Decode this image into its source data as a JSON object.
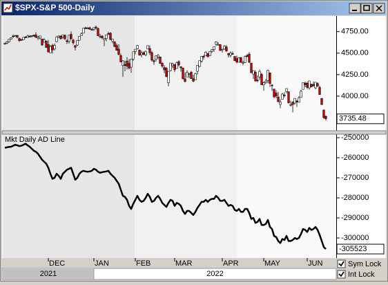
{
  "window": {
    "title": "$SPX-S&P 500-Daily"
  },
  "controls": {
    "sym_lock": {
      "label": "Sym Lock",
      "checked": true
    },
    "int_lock": {
      "label": "Int Lock",
      "checked": true
    }
  },
  "chart_data": [
    {
      "type": "candlestick",
      "color_up": "#ffffff",
      "color_down": "#cc0000",
      "xlim": [
        -1,
        160
      ],
      "ylim": [
        3605,
        4925
      ],
      "yticks": [
        {
          "value": 4750,
          "label": "4750.00"
        },
        {
          "value": 4500,
          "label": "4500.00"
        },
        {
          "value": 4250,
          "label": "4250.00"
        },
        {
          "value": 4000,
          "label": "4000.00"
        }
      ],
      "ohlc": [
        [
          4610,
          4620,
          4595,
          4614
        ],
        [
          4614,
          4636,
          4602,
          4631
        ],
        [
          4630,
          4664,
          4621,
          4660
        ],
        [
          4662,
          4683,
          4655,
          4680
        ],
        [
          4699,
          4718,
          4681,
          4697
        ],
        [
          4701,
          4714,
          4694,
          4702
        ],
        [
          4707,
          4708,
          4670,
          4685
        ],
        [
          4670,
          4684,
          4630,
          4646
        ],
        [
          4659,
          4664,
          4646,
          4649
        ],
        [
          4655,
          4688,
          4650,
          4683
        ],
        [
          4689,
          4697,
          4672,
          4682
        ],
        [
          4684,
          4714,
          4680,
          4700
        ],
        [
          4701,
          4703,
          4684,
          4688
        ],
        [
          4700,
          4708,
          4681,
          4704
        ],
        [
          4708,
          4717,
          4690,
          4698
        ],
        [
          4712,
          4743,
          4680,
          4682
        ],
        [
          4675,
          4702,
          4652,
          4690
        ],
        [
          4675,
          4702,
          4659,
          4701
        ],
        [
          4664,
          4664,
          4585,
          4595
        ],
        [
          4628,
          4672,
          4625,
          4655
        ],
        [
          4640,
          4646,
          4560,
          4567
        ],
        [
          4602,
          4652,
          4510,
          4513
        ],
        [
          4504,
          4595,
          4504,
          4577
        ],
        [
          4589,
          4608,
          4495,
          4538
        ],
        [
          4548,
          4612,
          4532,
          4591
        ],
        [
          4631,
          4694,
          4631,
          4686
        ],
        [
          4690,
          4705,
          4674,
          4701
        ],
        [
          4697,
          4708,
          4659,
          4667
        ],
        [
          4687,
          4713,
          4666,
          4712
        ],
        [
          4710,
          4711,
          4650,
          4668
        ],
        [
          4643,
          4660,
          4606,
          4634
        ],
        [
          4636,
          4712,
          4611,
          4709
        ],
        [
          4719,
          4752,
          4657,
          4668
        ],
        [
          4652,
          4666,
          4600,
          4620
        ],
        [
          4587,
          4594,
          4531,
          4568
        ],
        [
          4594,
          4651,
          4583,
          4649
        ],
        [
          4650,
          4698,
          4645,
          4697
        ],
        [
          4703,
          4740,
          4703,
          4725
        ],
        [
          4733,
          4791,
          4733,
          4791
        ],
        [
          4795,
          4807,
          4780,
          4786
        ],
        [
          4788,
          4805,
          4778,
          4793
        ],
        [
          4795,
          4808,
          4775,
          4778
        ],
        [
          4775,
          4787,
          4765,
          4766
        ],
        [
          4778,
          4797,
          4758,
          4797
        ],
        [
          4804,
          4819,
          4774,
          4794
        ],
        [
          4787,
          4798,
          4699,
          4701
        ],
        [
          4693,
          4726,
          4672,
          4696
        ],
        [
          4698,
          4708,
          4663,
          4677
        ],
        [
          4655,
          4673,
          4582,
          4670
        ],
        [
          4670,
          4715,
          4637,
          4713
        ],
        [
          4728,
          4749,
          4712,
          4726
        ],
        [
          4733,
          4744,
          4650,
          4659
        ],
        [
          4637,
          4665,
          4614,
          4663
        ],
        [
          4632,
          4632,
          4569,
          4577
        ],
        [
          4588,
          4612,
          4530,
          4533
        ],
        [
          4547,
          4603,
          4477,
          4483
        ],
        [
          4472,
          4494,
          4395,
          4398
        ],
        [
          4357,
          4418,
          4223,
          4410
        ],
        [
          4366,
          4412,
          4288,
          4357
        ],
        [
          4408,
          4454,
          4309,
          4350
        ],
        [
          4380,
          4429,
          4309,
          4326
        ],
        [
          4337,
          4432,
          4271,
          4432
        ],
        [
          4431,
          4517,
          4411,
          4516
        ],
        [
          4519,
          4546,
          4484,
          4546
        ],
        [
          4552,
          4595,
          4544,
          4589
        ],
        [
          4535,
          4542,
          4470,
          4477
        ],
        [
          4482,
          4530,
          4452,
          4500
        ],
        [
          4505,
          4522,
          4476,
          4484
        ],
        [
          4480,
          4531,
          4465,
          4521
        ],
        [
          4548,
          4591,
          4548,
          4587
        ],
        [
          4553,
          4589,
          4476,
          4504
        ],
        [
          4506,
          4527,
          4402,
          4419
        ],
        [
          4412,
          4427,
          4364,
          4401
        ],
        [
          4429,
          4472,
          4403,
          4472
        ],
        [
          4455,
          4490,
          4429,
          4475
        ],
        [
          4456,
          4457,
          4374,
          4381
        ],
        [
          4384,
          4394,
          4327,
          4349
        ],
        [
          4332,
          4363,
          4267,
          4305
        ],
        [
          4324,
          4340,
          4222,
          4226
        ],
        [
          4155,
          4294,
          4114,
          4288
        ],
        [
          4298,
          4385,
          4286,
          4385
        ],
        [
          4354,
          4389,
          4325,
          4374
        ],
        [
          4364,
          4375,
          4279,
          4306
        ],
        [
          4322,
          4401,
          4322,
          4387
        ],
        [
          4401,
          4417,
          4345,
          4363
        ],
        [
          4342,
          4342,
          4284,
          4329
        ],
        [
          4327,
          4327,
          4199,
          4201
        ],
        [
          4202,
          4276,
          4157,
          4171
        ],
        [
          4223,
          4300,
          4223,
          4278
        ],
        [
          4252,
          4268,
          4209,
          4260
        ],
        [
          4279,
          4292,
          4200,
          4204
        ],
        [
          4202,
          4248,
          4162,
          4173
        ],
        [
          4188,
          4272,
          4188,
          4262
        ],
        [
          4288,
          4358,
          4251,
          4358
        ],
        [
          4345,
          4412,
          4335,
          4412
        ],
        [
          4407,
          4465,
          4390,
          4463
        ],
        [
          4462,
          4481,
          4425,
          4461
        ],
        [
          4469,
          4522,
          4469,
          4512
        ],
        [
          4494,
          4500,
          4455,
          4457
        ],
        [
          4470,
          4520,
          4465,
          4520
        ],
        [
          4522,
          4546,
          4501,
          4543
        ],
        [
          4541,
          4575,
          4517,
          4575
        ],
        [
          4602,
          4637,
          4582,
          4632
        ],
        [
          4599,
          4627,
          4588,
          4602
        ],
        [
          4599,
          4603,
          4530,
          4530
        ],
        [
          4540,
          4548,
          4507,
          4546
        ],
        [
          4548,
          4593,
          4539,
          4583
        ],
        [
          4572,
          4593,
          4514,
          4525
        ],
        [
          4494,
          4503,
          4450,
          4481
        ],
        [
          4474,
          4521,
          4450,
          4500
        ],
        [
          4494,
          4520,
          4488,
          4488
        ],
        [
          4462,
          4464,
          4408,
          4413
        ],
        [
          4437,
          4471,
          4381,
          4397
        ],
        [
          4394,
          4453,
          4392,
          4447
        ],
        [
          4449,
          4453,
          4392,
          4392
        ],
        [
          4385,
          4411,
          4358,
          4391
        ],
        [
          4390,
          4471,
          4390,
          4462
        ],
        [
          4473,
          4489,
          4453,
          4460
        ],
        [
          4489,
          4513,
          4384,
          4394
        ],
        [
          4385,
          4386,
          4268,
          4272
        ],
        [
          4256,
          4300,
          4200,
          4296
        ],
        [
          4279,
          4299,
          4175,
          4175
        ],
        [
          4186,
          4240,
          4162,
          4184
        ],
        [
          4222,
          4308,
          4188,
          4288
        ],
        [
          4253,
          4270,
          4132,
          4132
        ],
        [
          4131,
          4169,
          4062,
          4155
        ],
        [
          4159,
          4200,
          4142,
          4175
        ],
        [
          4181,
          4307,
          4148,
          4300
        ],
        [
          4270,
          4270,
          4106,
          4147
        ],
        [
          4128,
          4141,
          4062,
          4123
        ],
        [
          4082,
          4082,
          3976,
          3991
        ],
        [
          4035,
          4068,
          3975,
          4001
        ],
        [
          3990,
          4050,
          3929,
          3935
        ],
        [
          3903,
          3964,
          3859,
          3930
        ],
        [
          3963,
          4039,
          3963,
          4024
        ],
        [
          4013,
          4046,
          3984,
          4008
        ],
        [
          4052,
          4089,
          4033,
          4088
        ],
        [
          4051,
          4051,
          3912,
          3923
        ],
        [
          3900,
          3946,
          3877,
          3901
        ],
        [
          3927,
          3943,
          3811,
          3901
        ],
        [
          3919,
          3975,
          3900,
          3974
        ],
        [
          3942,
          3955,
          3875,
          3941
        ],
        [
          3929,
          3999,
          3925,
          3979
        ],
        [
          3985,
          4075,
          3985,
          4058
        ],
        [
          4078,
          4158,
          4078,
          4158
        ],
        [
          4151,
          4168,
          4104,
          4132
        ],
        [
          4150,
          4167,
          4082,
          4101
        ],
        [
          4096,
          4177,
          4074,
          4177
        ],
        [
          4137,
          4143,
          4101,
          4109
        ],
        [
          4135,
          4169,
          4109,
          4121
        ],
        [
          4096,
          4164,
          4080,
          4161
        ],
        [
          4147,
          4160,
          4107,
          4116
        ],
        [
          4101,
          4120,
          4018,
          4018
        ],
        [
          3974,
          3974,
          3900,
          3901
        ],
        [
          3839,
          3839,
          3735,
          3750
        ],
        [
          3763,
          3778,
          3715,
          3735.48
        ]
      ]
    },
    {
      "type": "line",
      "title": "Mkt Daily AD Line",
      "color": "#000000",
      "xlim": [
        -1,
        160
      ],
      "ylim": [
        -309650,
        -248600
      ],
      "yticks": [
        -250000,
        -260000,
        -270000,
        -280000,
        -290000,
        -300000
      ],
      "xticks": [
        {
          "value": 21,
          "label": "DEC"
        },
        {
          "value": 43,
          "label": "JAN"
        },
        {
          "value": 63,
          "label": "FEB"
        },
        {
          "value": 82,
          "label": "MAR"
        },
        {
          "value": 105,
          "label": "APR"
        },
        {
          "value": 125,
          "label": "MAY"
        },
        {
          "value": 146,
          "label": "JUN"
        }
      ],
      "year_ticks": [
        {
          "value": 0,
          "label": "2021"
        },
        {
          "value": 43,
          "label": "2022"
        }
      ],
      "values": [
        -255000,
        -254800,
        -254600,
        -254500,
        -254000,
        -253500,
        -253800,
        -254200,
        -254000,
        -253500,
        -253000,
        -253800,
        -254500,
        -255500,
        -256500,
        -257000,
        -258000,
        -259500,
        -261000,
        -262000,
        -263000,
        -265000,
        -268000,
        -270500,
        -270000,
        -268000,
        -269000,
        -270500,
        -268000,
        -267000,
        -266000,
        -265500,
        -265000,
        -268000,
        -271000,
        -270000,
        -268000,
        -267000,
        -266500,
        -266800,
        -267000,
        -266800,
        -266500,
        -265500,
        -266000,
        -267000,
        -267500,
        -267200,
        -267000,
        -266800,
        -266500,
        -268000,
        -269000,
        -270000,
        -271500,
        -273000,
        -276000,
        -279000,
        -279500,
        -281000,
        -284000,
        -285500,
        -283000,
        -281000,
        -279000,
        -281000,
        -282000,
        -281500,
        -280000,
        -278000,
        -279500,
        -282000,
        -281500,
        -280000,
        -279000,
        -280500,
        -282500,
        -283500,
        -284500,
        -282500,
        -281000,
        -281500,
        -284000,
        -282500,
        -283000,
        -284000,
        -286500,
        -288000,
        -286500,
        -286500,
        -287500,
        -288500,
        -287000,
        -285000,
        -283500,
        -282000,
        -282000,
        -281000,
        -282000,
        -281000,
        -280500,
        -280500,
        -279000,
        -280000,
        -281500,
        -281500,
        -281000,
        -282500,
        -284000,
        -283500,
        -284000,
        -286000,
        -286500,
        -285500,
        -287000,
        -287000,
        -285500,
        -285500,
        -287500,
        -290500,
        -290000,
        -292500,
        -292000,
        -290500,
        -293500,
        -293500,
        -293000,
        -291000,
        -294500,
        -295500,
        -299000,
        -299500,
        -301500,
        -302500,
        -300500,
        -301000,
        -299000,
        -301500,
        -301500,
        -301000,
        -300000,
        -300500,
        -300000,
        -298000,
        -295500,
        -296000,
        -297000,
        -295000,
        -296000,
        -295500,
        -294500,
        -296000,
        -298500,
        -301500,
        -304500,
        -305523
      ]
    }
  ]
}
